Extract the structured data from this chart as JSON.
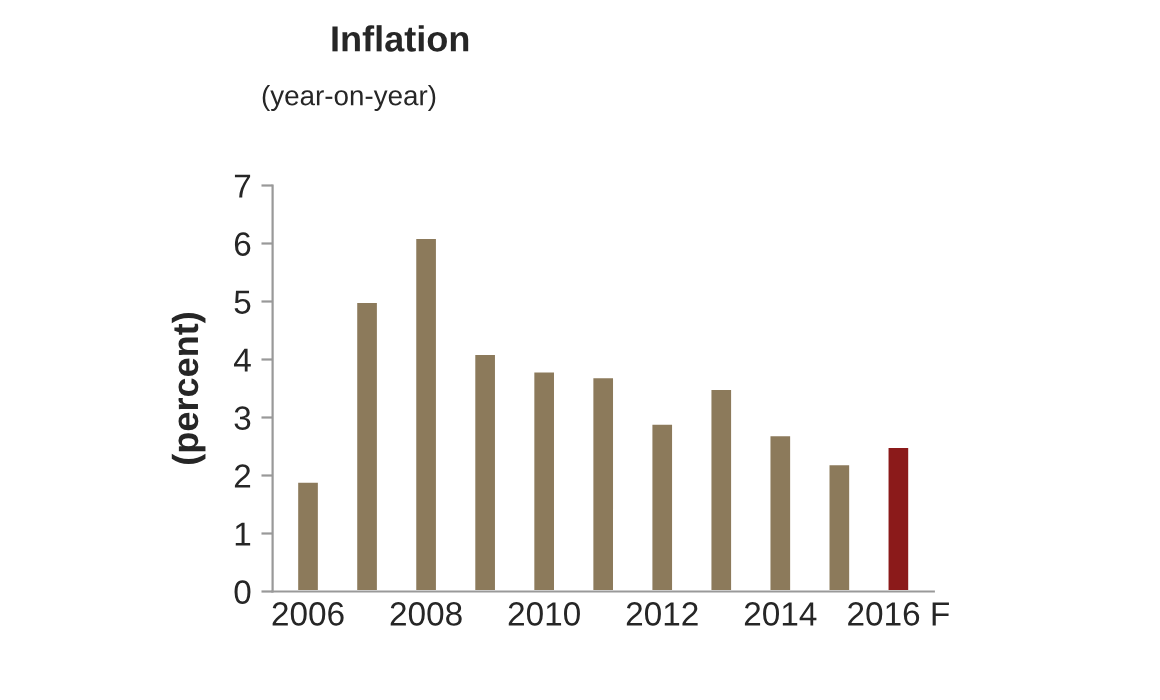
{
  "chart_data": {
    "type": "bar",
    "title": "Inflation",
    "subtitle": "(year-on-year)",
    "ylabel": "(percent)",
    "categories": [
      "2006",
      null,
      "2008",
      null,
      "2010",
      null,
      "2012",
      null,
      "2014",
      null,
      "2016 F"
    ],
    "values": [
      1.9,
      5.0,
      6.1,
      4.1,
      3.8,
      3.7,
      2.9,
      3.5,
      2.7,
      2.2,
      2.5
    ],
    "colors": [
      "#8c7a5b",
      "#8c7a5b",
      "#8c7a5b",
      "#8c7a5b",
      "#8c7a5b",
      "#8c7a5b",
      "#8c7a5b",
      "#8c7a5b",
      "#8c7a5b",
      "#8c7a5b",
      "#8b1a1a"
    ],
    "ylim": [
      0,
      7
    ],
    "yticks": [
      0,
      1,
      2,
      3,
      4,
      5,
      6,
      7
    ],
    "grid": false,
    "legend": false
  }
}
